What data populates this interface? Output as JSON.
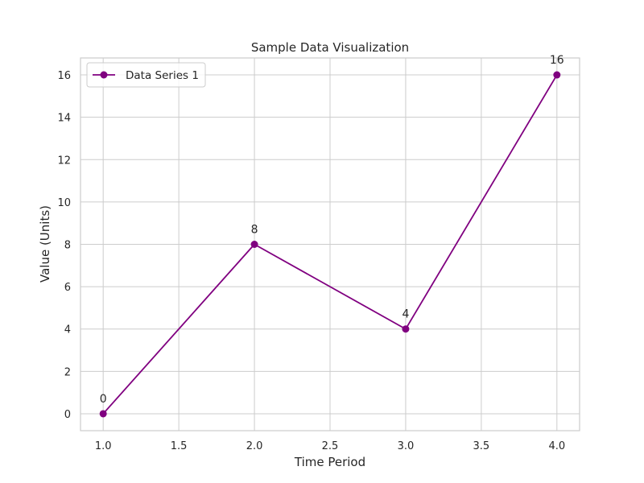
{
  "chart_data": {
    "type": "line",
    "title": "Sample Data Visualization",
    "xlabel": "Time Period",
    "ylabel": "Value (Units)",
    "x": [
      1.0,
      2.0,
      3.0,
      4.0
    ],
    "series": [
      {
        "name": "Data Series 1",
        "values": [
          0,
          8,
          4,
          16
        ],
        "color": "#800080",
        "marker": "circle"
      }
    ],
    "data_labels": [
      "0",
      "8",
      "4",
      "16"
    ],
    "xlim": [
      0.85,
      4.15
    ],
    "ylim": [
      -0.8,
      16.8
    ],
    "x_ticks": [
      1.0,
      1.5,
      2.0,
      2.5,
      3.0,
      3.5,
      4.0
    ],
    "x_tick_labels": [
      "1.0",
      "1.5",
      "2.0",
      "2.5",
      "3.0",
      "3.5",
      "4.0"
    ],
    "y_ticks": [
      0,
      2,
      4,
      6,
      8,
      10,
      12,
      14,
      16
    ],
    "y_tick_labels": [
      "0",
      "2",
      "4",
      "6",
      "8",
      "10",
      "12",
      "14",
      "16"
    ],
    "grid": true,
    "legend_position": "top-left",
    "colors": {
      "grid": "#cccccc",
      "spine": "#cccccc",
      "text": "#262626",
      "legend_border": "#cccccc",
      "background": "#ffffff"
    }
  }
}
